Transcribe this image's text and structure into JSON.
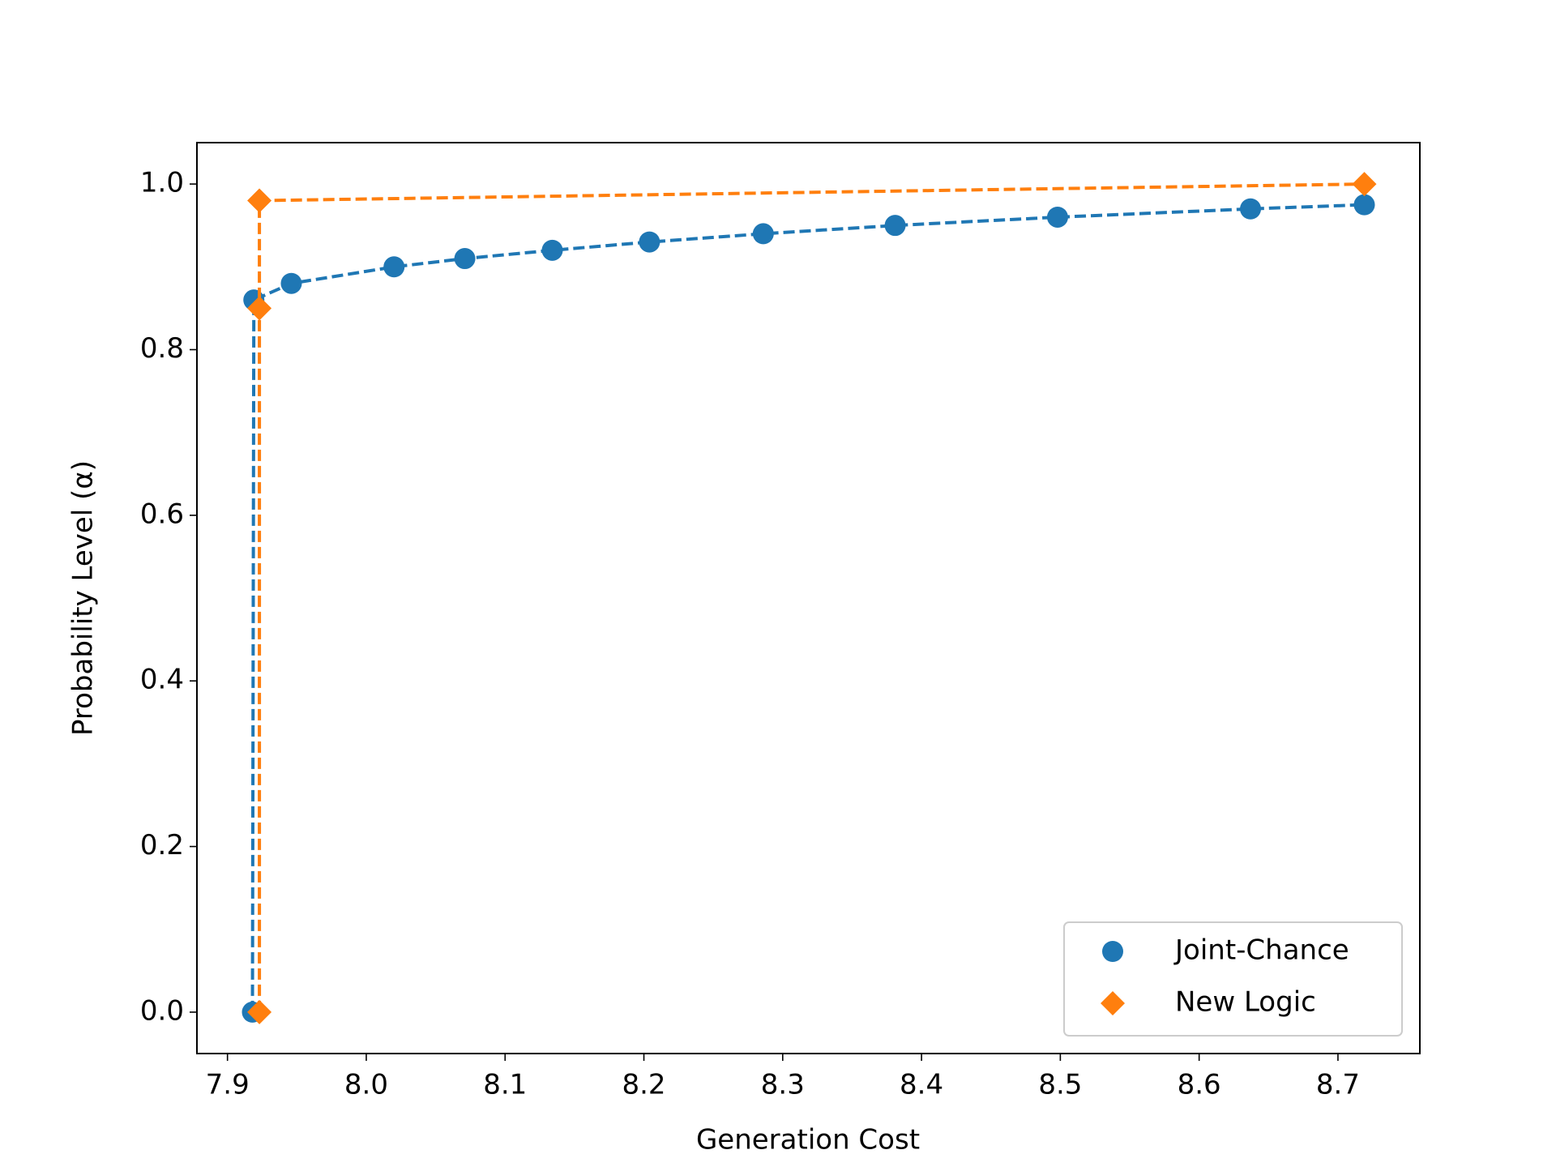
{
  "chart_data": {
    "type": "line",
    "xlabel": "Generation Cost",
    "ylabel": "Probability Level (α)",
    "xlim": [
      7.878,
      8.759
    ],
    "ylim": [
      -0.05,
      1.05
    ],
    "xticks": [
      {
        "value": 7.9,
        "label": "7.9"
      },
      {
        "value": 8.0,
        "label": "8.0"
      },
      {
        "value": 8.1,
        "label": "8.1"
      },
      {
        "value": 8.2,
        "label": "8.2"
      },
      {
        "value": 8.3,
        "label": "8.3"
      },
      {
        "value": 8.4,
        "label": "8.4"
      },
      {
        "value": 8.5,
        "label": "8.5"
      },
      {
        "value": 8.6,
        "label": "8.6"
      },
      {
        "value": 8.7,
        "label": "8.7"
      }
    ],
    "yticks": [
      {
        "value": 0,
        "label": "0.0"
      },
      {
        "value": 0.2,
        "label": "0.2"
      },
      {
        "value": 0.4,
        "label": "0.4"
      },
      {
        "value": 0.6,
        "label": "0.6"
      },
      {
        "value": 0.8,
        "label": "0.8"
      },
      {
        "value": 1,
        "label": "1.0"
      }
    ],
    "legend": "lower right",
    "line_style": "dashed",
    "series": [
      {
        "name": "Joint-Chance",
        "color": "#1f77b4",
        "marker": "circle",
        "x": [
          7.918,
          7.919,
          7.946,
          8.02,
          8.071,
          8.134,
          8.204,
          8.286,
          8.381,
          8.498,
          8.637,
          8.719
        ],
        "values": [
          0,
          0.86,
          0.88,
          0.9,
          0.91,
          0.92,
          0.93,
          0.94,
          0.95,
          0.96,
          0.97,
          0.975
        ]
      },
      {
        "name": "New Logic",
        "color": "#ff7f0e",
        "marker": "diamond",
        "x": [
          7.923,
          7.923,
          7.923,
          8.719
        ],
        "values": [
          0,
          0.85,
          0.98,
          1.0
        ]
      }
    ]
  }
}
